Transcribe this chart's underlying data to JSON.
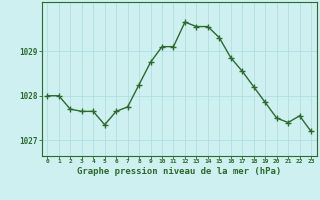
{
  "hours": [
    0,
    1,
    2,
    3,
    4,
    5,
    6,
    7,
    8,
    9,
    10,
    11,
    12,
    13,
    14,
    15,
    16,
    17,
    18,
    19,
    20,
    21,
    22,
    23
  ],
  "pressure": [
    1028.0,
    1028.0,
    1027.7,
    1027.65,
    1027.65,
    1027.35,
    1027.65,
    1027.75,
    1028.25,
    1028.75,
    1029.1,
    1029.1,
    1029.65,
    1029.55,
    1029.55,
    1029.3,
    1028.85,
    1028.55,
    1028.2,
    1027.85,
    1027.5,
    1027.4,
    1027.55,
    1027.2
  ],
  "xlim": [
    -0.5,
    23.5
  ],
  "ylim": [
    1026.65,
    1030.1
  ],
  "yticks": [
    1027,
    1028,
    1029
  ],
  "xticks": [
    0,
    1,
    2,
    3,
    4,
    5,
    6,
    7,
    8,
    9,
    10,
    11,
    12,
    13,
    14,
    15,
    16,
    17,
    18,
    19,
    20,
    21,
    22,
    23
  ],
  "xlabel": "Graphe pression niveau de la mer (hPa)",
  "line_color": "#2d6a2d",
  "marker_color": "#2d6a2d",
  "bg_color": "#cef0f0",
  "grid_color": "#aadddd",
  "axis_color": "#2d6a2d",
  "tick_label_color": "#2d6a2d",
  "xlabel_color": "#2d6a2d"
}
